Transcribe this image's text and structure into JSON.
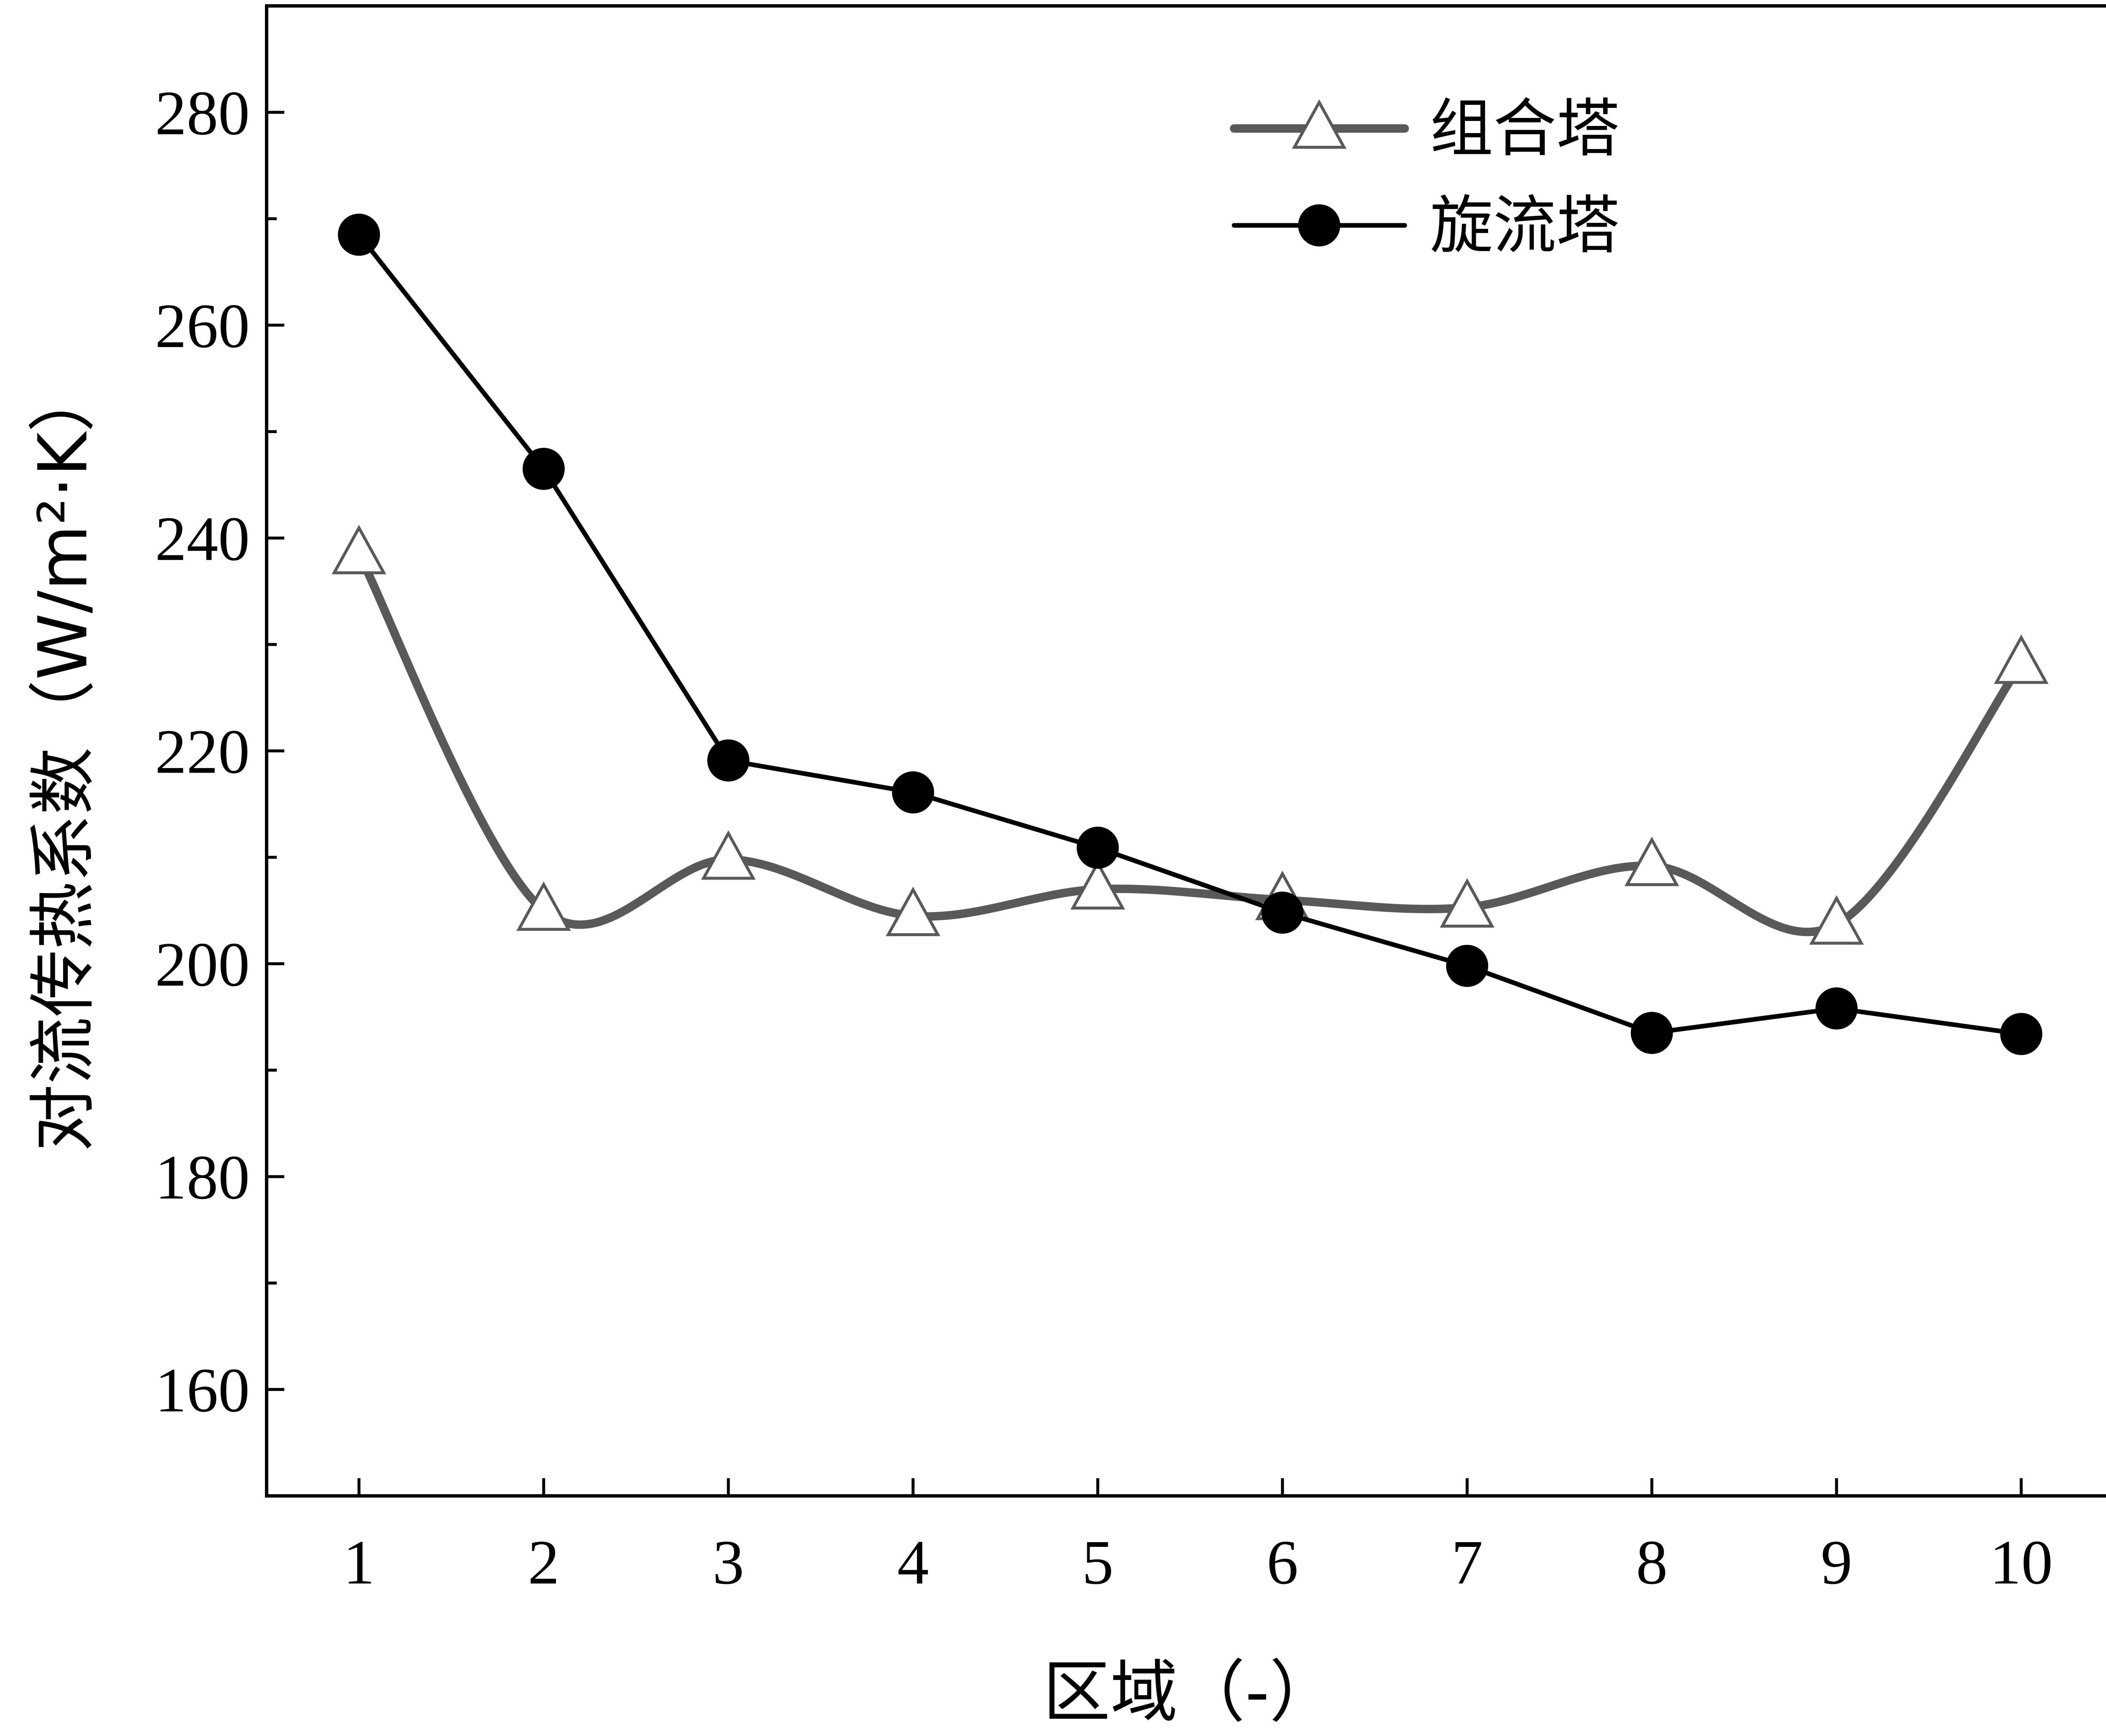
{
  "chart_data": {
    "type": "line",
    "title": "",
    "xlabel": "区域（-）",
    "ylabel": "对流传热系数（W/m²·K）",
    "x": [
      1,
      2,
      3,
      4,
      5,
      6,
      7,
      8,
      9,
      10
    ],
    "xlim": [
      0.5,
      10.5
    ],
    "ylim": [
      150,
      290
    ],
    "yticks": [
      160,
      180,
      200,
      220,
      240,
      260,
      280
    ],
    "series": [
      {
        "name": "组合塔",
        "values": [
          238.5,
          205.0,
          209.8,
          204.5,
          207.0,
          206.0,
          205.3,
          209.2,
          203.7,
          228.2
        ],
        "color": "#595959",
        "marker": "triangle-open",
        "smooth": true
      },
      {
        "name": "旋流塔",
        "values": [
          268.5,
          246.5,
          219.1,
          216.1,
          210.9,
          204.8,
          199.8,
          193.5,
          195.8,
          193.4
        ],
        "color": "#000000",
        "marker": "circle-filled",
        "smooth": false
      }
    ],
    "legend_position": "top-right",
    "grid": false
  }
}
